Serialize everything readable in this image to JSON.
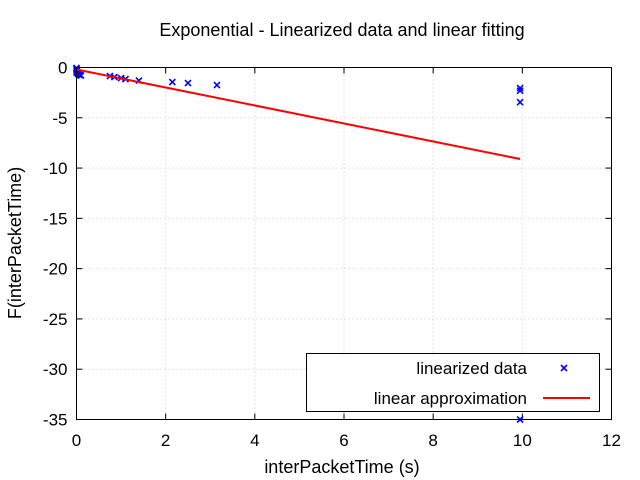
{
  "chart_data": {
    "type": "scatter",
    "title": "Exponential - Linearized data and linear fitting",
    "xlabel": "interPacketTime (s)",
    "ylabel": "F(interPacketTime)",
    "xlim": [
      0,
      12
    ],
    "ylim": [
      -35,
      0
    ],
    "xticks": [
      0,
      2,
      4,
      6,
      8,
      10,
      12
    ],
    "yticks": [
      0,
      -5,
      -10,
      -15,
      -20,
      -25,
      -30,
      -35
    ],
    "xtick_labels": [
      "0",
      "2",
      "4",
      "6",
      "8",
      "10",
      "12"
    ],
    "ytick_labels": [
      "0",
      "-5",
      "-10",
      "-15",
      "-20",
      "-25",
      "-30",
      "-35"
    ],
    "grid": true,
    "legend_position": "bottom-right",
    "series": [
      {
        "name": "linearized data",
        "type": "scatter",
        "marker": "x",
        "color": "#0000ff",
        "points": [
          [
            0.0,
            -0.05
          ],
          [
            0.0,
            -0.15
          ],
          [
            0.0,
            -0.3
          ],
          [
            0.02,
            -0.45
          ],
          [
            0.03,
            -0.6
          ],
          [
            0.05,
            -0.7
          ],
          [
            0.08,
            -0.75
          ],
          [
            0.1,
            -0.8
          ],
          [
            0.0,
            -0.5
          ],
          [
            0.01,
            -0.25
          ],
          [
            0.75,
            -0.85
          ],
          [
            0.85,
            -0.95
          ],
          [
            1.0,
            -1.05
          ],
          [
            1.1,
            -1.15
          ],
          [
            1.4,
            -1.3
          ],
          [
            2.15,
            -1.45
          ],
          [
            2.5,
            -1.55
          ],
          [
            3.15,
            -1.75
          ],
          [
            9.95,
            -2.05
          ],
          [
            9.95,
            -2.3
          ],
          [
            9.95,
            -3.45
          ],
          [
            9.95,
            -35.0
          ]
        ]
      },
      {
        "name": "linear approximation",
        "type": "line",
        "color": "#ff0000",
        "points": [
          [
            0.0,
            -0.2
          ],
          [
            9.95,
            -9.1
          ]
        ]
      }
    ]
  }
}
